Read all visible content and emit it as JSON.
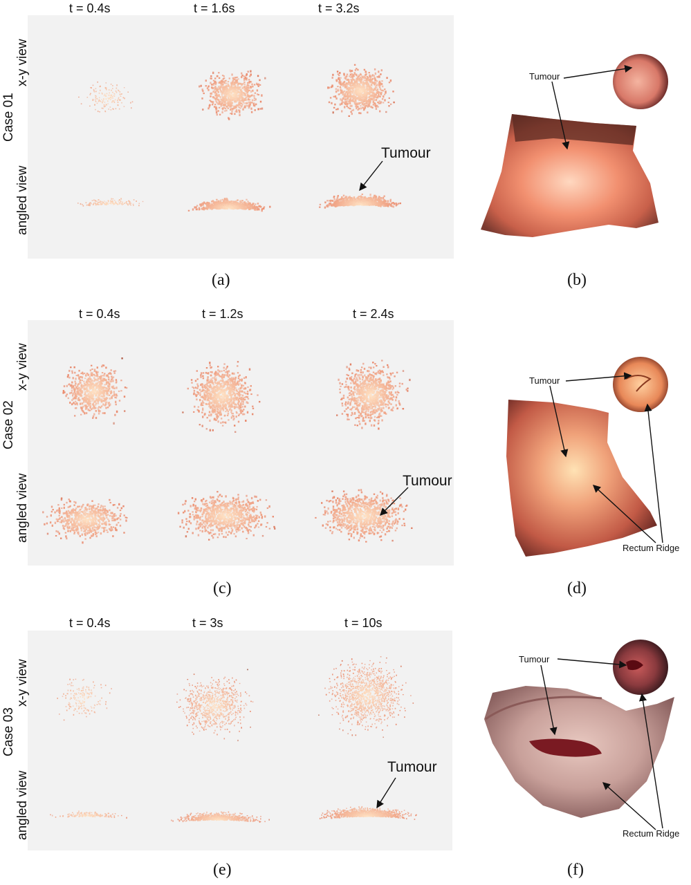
{
  "rows": [
    {
      "case_label": "Case 01",
      "times": [
        "t = 0.4s",
        "t = 1.6s",
        "t = 3.2s"
      ],
      "view_top": "x-y view",
      "view_bottom": "angled view",
      "tumour_label": "Tumour",
      "caption_left": "(a)",
      "caption_right": "(b)",
      "right_labels": {
        "tumour": "Tumour"
      }
    },
    {
      "case_label": "Case 02",
      "times": [
        "t = 0.4s",
        "t = 1.2s",
        "t = 2.4s"
      ],
      "view_top": "x-y view",
      "view_bottom": "angled view",
      "tumour_label": "Tumour",
      "caption_left": "(c)",
      "caption_right": "(d)",
      "right_labels": {
        "tumour": "Tumour",
        "ridge": "Rectum Ridge"
      }
    },
    {
      "case_label": "Case 03",
      "times": [
        "t = 0.4s",
        "t = 3s",
        "t = 10s"
      ],
      "view_top": "x-y view",
      "view_bottom": "angled view",
      "tumour_label": "Tumour",
      "caption_left": "(e)",
      "caption_right": "(f)",
      "right_labels": {
        "tumour": "Tumour",
        "ridge": "Rectum Ridge"
      }
    }
  ],
  "colors": {
    "panel_bg": "#f2f2f2",
    "tissue_light": "#ffe4c8",
    "tissue_mid": "#e88a6a",
    "tissue_dark": "#5a2a22"
  }
}
